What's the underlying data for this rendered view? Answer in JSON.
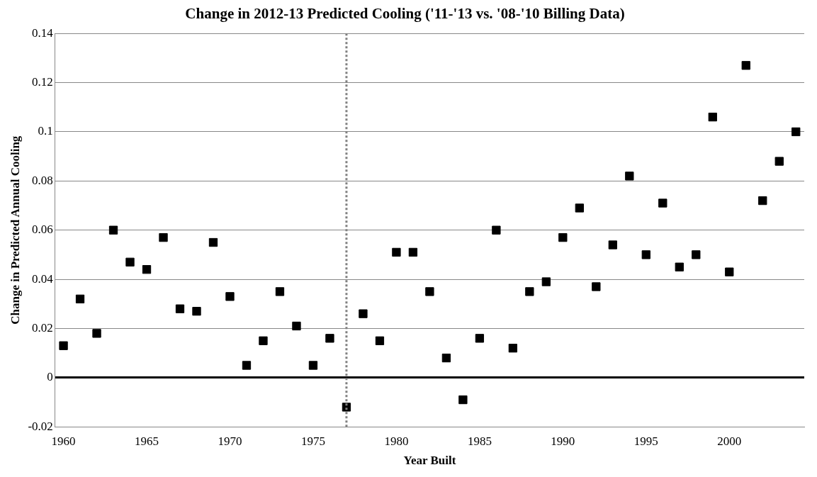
{
  "chart_data": {
    "type": "scatter",
    "title": "Change in 2012-13 Predicted Cooling ('11-'13 vs. '08-'10 Billing Data)",
    "xlabel": "Year Built",
    "ylabel": "Change in Predicted Annual Cooling",
    "x": [
      1960,
      1961,
      1962,
      1963,
      1964,
      1965,
      1966,
      1967,
      1968,
      1969,
      1970,
      1971,
      1972,
      1973,
      1974,
      1975,
      1976,
      1977,
      1978,
      1979,
      1980,
      1981,
      1982,
      1983,
      1984,
      1985,
      1986,
      1987,
      1988,
      1989,
      1990,
      1991,
      1992,
      1993,
      1994,
      1995,
      1996,
      1997,
      1998,
      1999,
      2000,
      2001,
      2002,
      2003,
      2004
    ],
    "series": [
      {
        "color": "#000000",
        "values": [
          0.013,
          0.032,
          0.018,
          0.06,
          0.047,
          0.044,
          0.057,
          0.028,
          0.027,
          0.055,
          0.033,
          0.005,
          0.015,
          0.035,
          0.021,
          0.005,
          0.016,
          -0.012,
          0.026,
          0.015,
          0.051,
          0.051,
          0.035,
          0.008,
          -0.009,
          0.016,
          0.06,
          0.012,
          0.035,
          0.039,
          0.057,
          0.069,
          0.037,
          0.054,
          0.082,
          0.05,
          0.071,
          0.045,
          0.05,
          0.106,
          0.043,
          0.127,
          0.072,
          0.088,
          0.1
        ]
      }
    ],
    "xlim": [
      1959.5,
      2004.5
    ],
    "xticks": [
      1960,
      1965,
      1970,
      1975,
      1980,
      1985,
      1990,
      1995,
      2000
    ],
    "ylim": [
      -0.02,
      0.14
    ],
    "yticks": [
      -0.02,
      0,
      0.02,
      0.04,
      0.06,
      0.08,
      0.1,
      0.12,
      0.14
    ],
    "ref_lines": [
      {
        "axis": "x",
        "value": 1977,
        "color": "#808080",
        "line_style": "dotted"
      }
    ],
    "grid": "y",
    "legend": false,
    "marker": "square"
  }
}
